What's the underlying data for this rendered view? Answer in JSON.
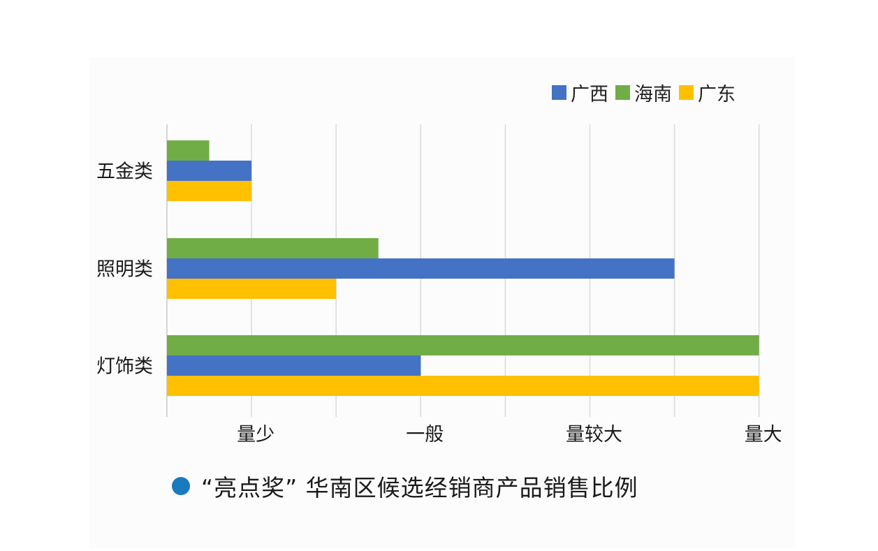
{
  "chart_data": {
    "type": "bar",
    "orientation": "horizontal",
    "categories": [
      "五金类",
      "照明类",
      "灯饰类"
    ],
    "xaxis_tick_labels": [
      "量少",
      "一般",
      "量较大",
      "量大"
    ],
    "xaxis_tick_values": [
      1,
      3,
      5,
      7
    ],
    "xlim": [
      0,
      7
    ],
    "grid": true,
    "legend_position": "top-right",
    "series": [
      {
        "name": "海南",
        "color": "#70AD47",
        "values": [
          0.5,
          2.5,
          7
        ]
      },
      {
        "name": "广西",
        "color": "#4472C4",
        "values": [
          1,
          6,
          3
        ]
      },
      {
        "name": "广东",
        "color": "#FFC000",
        "values": [
          1,
          2,
          7
        ]
      }
    ],
    "legend_order": [
      "广西",
      "海南",
      "广东"
    ]
  },
  "caption": {
    "text": "“亮点奖” 华南区候选经销商产品销售比例",
    "dot_color": "#1a7abf"
  }
}
